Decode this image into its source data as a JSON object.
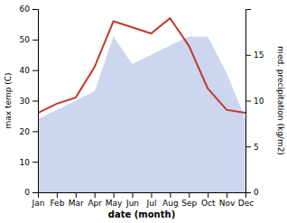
{
  "chart_data": {
    "type": "line",
    "xlabel": "date (month)",
    "ylabel": "max temp (C)",
    "y2label": "med. precipitation (kg/m2)",
    "categories": [
      "Jan",
      "Feb",
      "Mar",
      "Apr",
      "May",
      "Jun",
      "Jul",
      "Aug",
      "Sep",
      "Oct",
      "Nov",
      "Dec"
    ],
    "series": [
      {
        "type": "line",
        "color": "#c0392b",
        "values": [
          26,
          29,
          31,
          41,
          56,
          54,
          52,
          57,
          48,
          34,
          27,
          26
        ]
      },
      {
        "type": "area",
        "color": "#b8c4e8",
        "axis": "y2",
        "values": [
          8,
          9,
          10,
          11,
          17,
          14,
          15,
          16,
          17,
          17,
          13,
          8
        ]
      }
    ],
    "ylim": [
      0,
      60
    ],
    "yticks": [
      0,
      10,
      20,
      30,
      40,
      50,
      60
    ],
    "y2lim": [
      0,
      20
    ],
    "y2ticks": [
      0,
      5,
      10,
      15
    ],
    "grid": false
  }
}
